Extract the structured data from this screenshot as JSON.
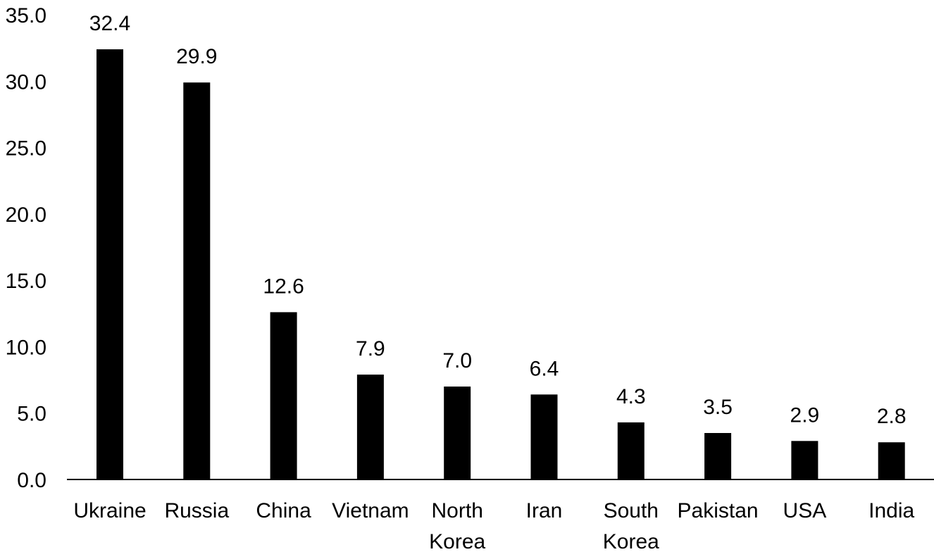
{
  "chart_data": {
    "type": "bar",
    "title": "",
    "xlabel": "",
    "ylabel": "",
    "categories": [
      [
        "Ukraine"
      ],
      [
        "Russia"
      ],
      [
        "China"
      ],
      [
        "Vietnam"
      ],
      [
        "North",
        "Korea"
      ],
      [
        "Iran"
      ],
      [
        "South",
        "Korea"
      ],
      [
        "Pakistan"
      ],
      [
        "USA"
      ],
      [
        "India"
      ]
    ],
    "values": [
      32.4,
      29.9,
      12.6,
      7.9,
      7.0,
      6.4,
      4.3,
      3.5,
      2.9,
      2.8
    ],
    "value_labels": [
      "32.4",
      "29.9",
      "12.6",
      "7.9",
      "7.0",
      "6.4",
      "4.3",
      "3.5",
      "2.9",
      "2.8"
    ],
    "ylim": [
      0,
      35
    ],
    "yticks": [
      "0.0",
      "5.0",
      "10.0",
      "15.0",
      "20.0",
      "25.0",
      "30.0",
      "35.0"
    ],
    "grid": false,
    "legend": "none",
    "bar_color": "#000000"
  }
}
